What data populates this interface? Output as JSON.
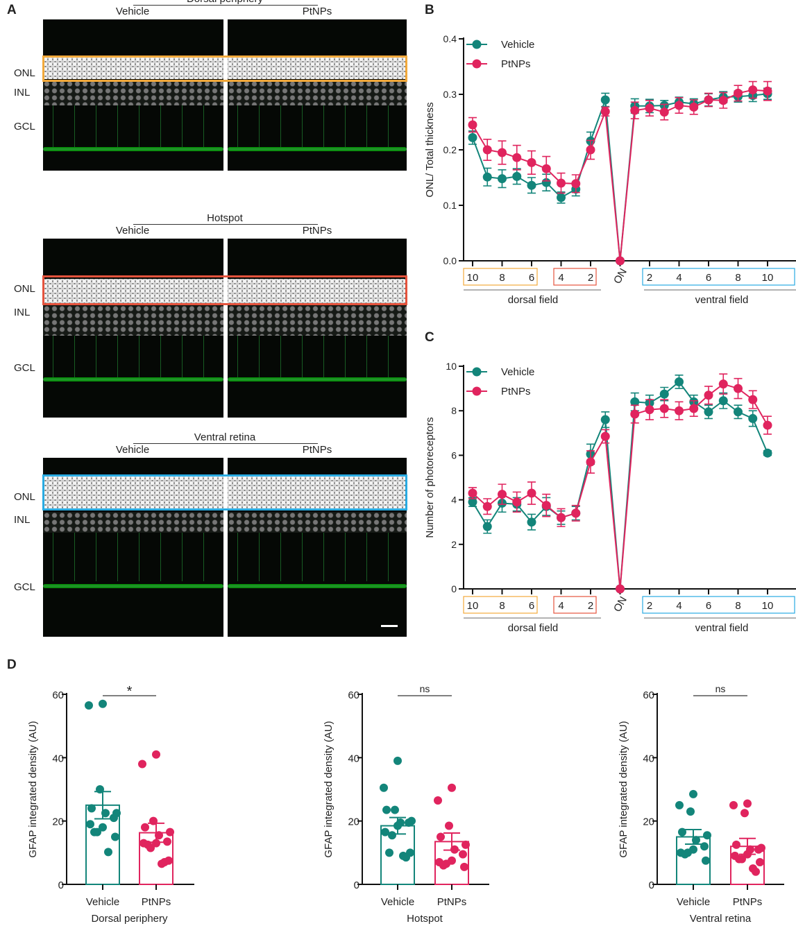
{
  "colors": {
    "vehicle": "#13857a",
    "ptnps": "#e0245e",
    "dorsal_periphery_box": "#f2a93b",
    "hotspot_box": "#e5533d",
    "ventral_box": "#29abe2",
    "axis": "#111111"
  },
  "panel_a": {
    "letter": "A",
    "conditions": [
      "Vehicle",
      "PtNPs"
    ],
    "layers": [
      "ONL",
      "INL",
      "GCL"
    ],
    "rows": [
      {
        "title": "Dorsal periphery"
      },
      {
        "title": "Hotspot"
      },
      {
        "title": "Ventral retina"
      }
    ],
    "scale_bar": true
  },
  "letters": {
    "b": "B",
    "c": "C",
    "d": "D"
  },
  "chart_data": [
    {
      "id": "B",
      "type": "line",
      "ylabel": "ONL/ Total thickness",
      "ylim": [
        0,
        0.4
      ],
      "yticks": [
        "0.0",
        "0.1",
        "0.2",
        "0.3",
        "0.4"
      ],
      "xtick_labels": [
        "10",
        "8",
        "6",
        "4",
        "2",
        "ON",
        "2",
        "4",
        "6",
        "8",
        "10"
      ],
      "x": [
        "D10",
        "D9",
        "D8",
        "D7",
        "D6",
        "D5",
        "D4",
        "D3",
        "D2",
        "D1",
        "ON",
        "V1",
        "V2",
        "V3",
        "V4",
        "V5",
        "V6",
        "V7",
        "V8",
        "V9",
        "V10"
      ],
      "groups": [
        "dorsal field",
        "ventral field"
      ],
      "legend": "top-left",
      "series": [
        {
          "name": "Vehicle",
          "values": [
            0.222,
            0.151,
            0.148,
            0.152,
            0.136,
            0.141,
            0.114,
            0.129,
            0.216,
            0.29,
            0,
            0.279,
            0.279,
            0.28,
            0.286,
            0.283,
            0.29,
            0.295,
            0.296,
            0.298,
            0.301
          ],
          "sem": [
            0.012,
            0.016,
            0.016,
            0.014,
            0.014,
            0.015,
            0.01,
            0.012,
            0.016,
            0.012,
            0,
            0.013,
            0.012,
            0.009,
            0.009,
            0.009,
            0.011,
            0.01,
            0.01,
            0.011,
            0.01
          ]
        },
        {
          "name": "PtNPs",
          "values": [
            0.245,
            0.2,
            0.195,
            0.186,
            0.177,
            0.166,
            0.14,
            0.139,
            0.2,
            0.269,
            0,
            0.271,
            0.275,
            0.268,
            0.28,
            0.277,
            0.29,
            0.289,
            0.302,
            0.308,
            0.306
          ],
          "sem": [
            0.013,
            0.019,
            0.021,
            0.022,
            0.021,
            0.022,
            0.018,
            0.016,
            0.017,
            0.008,
            0,
            0.015,
            0.014,
            0.014,
            0.014,
            0.013,
            0.012,
            0.014,
            0.014,
            0.015,
            0.017
          ]
        }
      ]
    },
    {
      "id": "C",
      "type": "line",
      "ylabel": "Number of photoreceptors",
      "ylim": [
        0,
        10
      ],
      "yticks": [
        "0",
        "2",
        "4",
        "6",
        "8",
        "10"
      ],
      "xtick_labels": [
        "10",
        "8",
        "6",
        "4",
        "2",
        "ON",
        "2",
        "4",
        "6",
        "8",
        "10"
      ],
      "x": [
        "D10",
        "D9",
        "D8",
        "D7",
        "D6",
        "D5",
        "D4",
        "D3",
        "D2",
        "D1",
        "ON",
        "V1",
        "V2",
        "V3",
        "V4",
        "V5",
        "V6",
        "V7",
        "V8",
        "V9",
        "V10"
      ],
      "groups": [
        "dorsal field",
        "ventral field"
      ],
      "legend": "top-left",
      "series": [
        {
          "name": "Vehicle",
          "values": [
            3.9,
            2.8,
            3.85,
            3.8,
            3.0,
            3.7,
            3.2,
            3.4,
            6.05,
            7.6,
            0,
            8.4,
            8.35,
            8.75,
            9.3,
            8.4,
            7.95,
            8.45,
            7.95,
            7.65,
            6.1
          ],
          "sem": [
            0.2,
            0.3,
            0.4,
            0.3,
            0.35,
            0.4,
            0.3,
            0.3,
            0.45,
            0.35,
            0,
            0.4,
            0.35,
            0.3,
            0.3,
            0.3,
            0.3,
            0.35,
            0.3,
            0.35,
            0.1
          ]
        },
        {
          "name": "PtNPs",
          "values": [
            4.3,
            3.7,
            4.25,
            3.9,
            4.3,
            3.75,
            3.2,
            3.4,
            5.7,
            6.85,
            0,
            7.85,
            8.05,
            8.1,
            8.0,
            8.1,
            8.7,
            9.2,
            9.0,
            8.5,
            7.35
          ],
          "sem": [
            0.25,
            0.35,
            0.45,
            0.45,
            0.5,
            0.5,
            0.4,
            0.35,
            0.5,
            0.3,
            0,
            0.4,
            0.45,
            0.4,
            0.4,
            0.35,
            0.4,
            0.45,
            0.45,
            0.4,
            0.4
          ]
        }
      ]
    },
    {
      "id": "D1",
      "type": "bar",
      "ylabel": "GFAP integrated density (AU)",
      "xlabel": "Dorsal periphery",
      "ylim": [
        0,
        60
      ],
      "yticks": [
        "0",
        "20",
        "40",
        "60"
      ],
      "categories": [
        "Vehicle",
        "PtNPs"
      ],
      "means": [
        25,
        16.3
      ],
      "sem": [
        4.3,
        3.0
      ],
      "points": [
        [
          57,
          56.5,
          30,
          24,
          22.5,
          22.5,
          21,
          18,
          19,
          16.5,
          16.5,
          15,
          10.2
        ],
        [
          41,
          38,
          20,
          18,
          16.5,
          15.5,
          13.5,
          13,
          13,
          11.5,
          12.5,
          7.5,
          6.5,
          7
        ]
      ],
      "significance": "*"
    },
    {
      "id": "D2",
      "type": "bar",
      "ylabel": "GFAP integrated density (AU)",
      "xlabel": "Hotspot",
      "ylim": [
        0,
        60
      ],
      "yticks": [
        "0",
        "20",
        "40",
        "60"
      ],
      "categories": [
        "Vehicle",
        "PtNPs"
      ],
      "means": [
        18.5,
        13.5
      ],
      "sem": [
        2.6,
        2.7
      ],
      "points": [
        [
          39,
          30.5,
          23.5,
          23.5,
          20,
          19.5,
          19.5,
          18.5,
          16.5,
          15.5,
          10,
          10,
          9,
          8.5
        ],
        [
          30.5,
          26.5,
          18.5,
          15,
          12.5,
          11,
          9.5,
          7.5,
          7,
          6.5,
          6,
          5.5
        ]
      ],
      "significance": "ns"
    },
    {
      "id": "D3",
      "type": "bar",
      "ylabel": "GFAP integrated density (AU)",
      "xlabel": "Ventral retina",
      "ylim": [
        0,
        60
      ],
      "yticks": [
        "0",
        "20",
        "40",
        "60"
      ],
      "categories": [
        "Vehicle",
        "PtNPs"
      ],
      "means": [
        15,
        12
      ],
      "sem": [
        2.3,
        2.5
      ],
      "points": [
        [
          28.5,
          25,
          23,
          16.5,
          15.5,
          14,
          12,
          11,
          10,
          10,
          9.5,
          7.5
        ],
        [
          25.5,
          25,
          22.5,
          12.5,
          11.5,
          11,
          11,
          9.5,
          9,
          8,
          8,
          7,
          5,
          4
        ]
      ],
      "significance": "ns"
    }
  ]
}
